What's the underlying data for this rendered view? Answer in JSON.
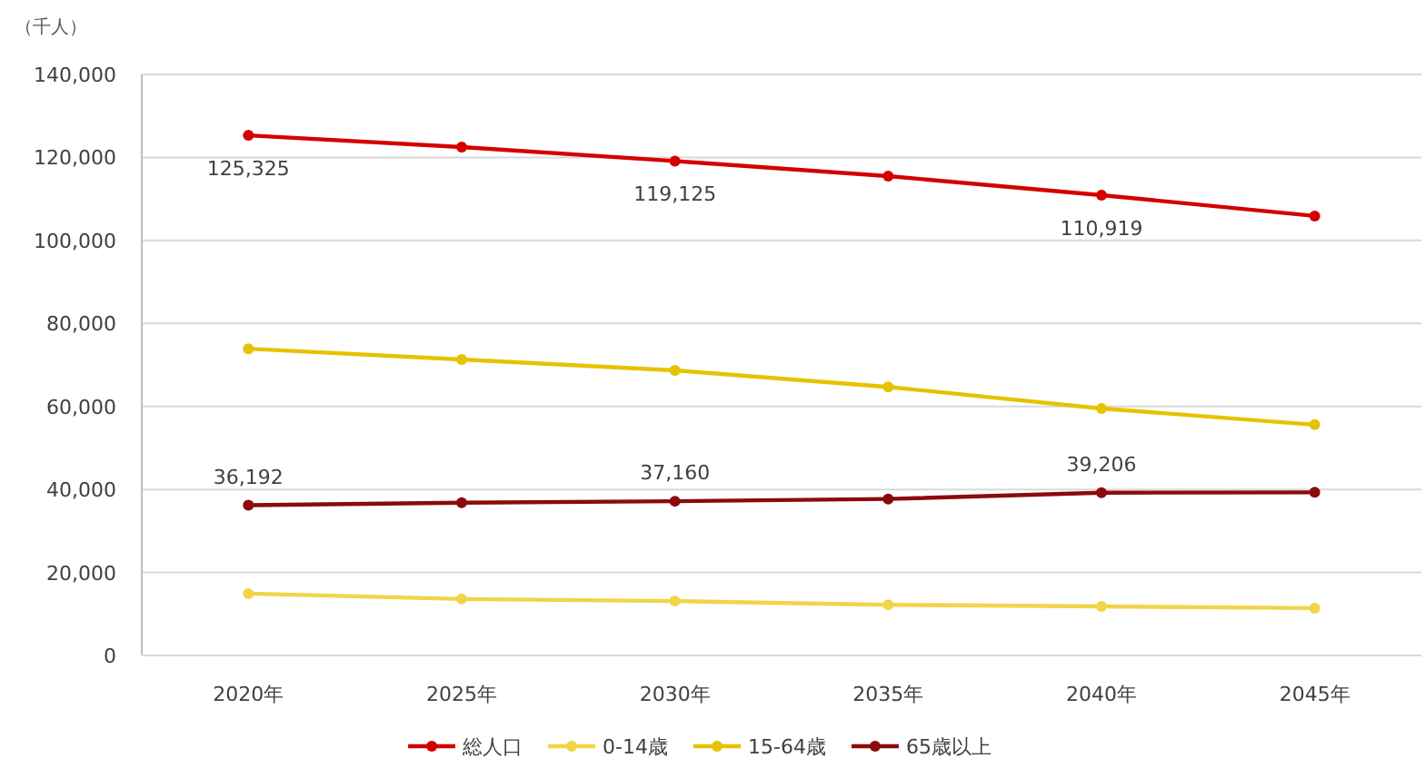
{
  "chart_data": {
    "type": "line",
    "ylabel": "（千人）",
    "categories": [
      "2020年",
      "2025年",
      "2030年",
      "2035年",
      "2040年",
      "2045年"
    ],
    "series": [
      {
        "name": "総人口",
        "color": "#d40000",
        "values": [
          125325,
          122500,
          119125,
          115500,
          110919,
          105900
        ],
        "value_labels": [
          "125,325",
          null,
          "119,125",
          null,
          "110,919",
          null
        ]
      },
      {
        "name": "0-14歳",
        "color": "#f2d447",
        "values": [
          14900,
          13600,
          13100,
          12200,
          11800,
          11400
        ]
      },
      {
        "name": "15-64歳",
        "color": "#e6c200",
        "values": [
          73900,
          71300,
          68700,
          64700,
          59500,
          55600
        ]
      },
      {
        "name": "65歳以上",
        "color": "#8b0a0a",
        "values": [
          36192,
          36800,
          37160,
          37700,
          39206,
          39300
        ],
        "value_labels": [
          "36,192",
          null,
          "37,160",
          null,
          "39,206",
          null
        ]
      }
    ],
    "ylim": [
      0,
      140000
    ],
    "yticks": [
      {
        "value": 0,
        "label": "0"
      },
      {
        "value": 20000,
        "label": "20,000"
      },
      {
        "value": 40000,
        "label": "40,000"
      },
      {
        "value": 60000,
        "label": "60,000"
      },
      {
        "value": 80000,
        "label": "80,000"
      },
      {
        "value": 100000,
        "label": "100,000"
      },
      {
        "value": 120000,
        "label": "120,000"
      },
      {
        "value": 140000,
        "label": "140,000"
      }
    ],
    "grid": "y",
    "legend": "bottom",
    "marker": "circle",
    "line_style": "solid"
  }
}
